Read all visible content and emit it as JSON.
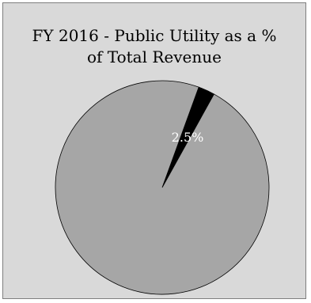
{
  "chart_data": {
    "type": "pie",
    "title_lines": [
      "FY 2016 - Public Utility as a %",
      "of Total Revenue"
    ],
    "slices": [
      {
        "value": 2.5,
        "color": "#000000",
        "label": "2.5%"
      },
      {
        "value": 97.5,
        "color": "#a6a6a6",
        "label": ""
      }
    ],
    "label_color": "#ffffff"
  }
}
